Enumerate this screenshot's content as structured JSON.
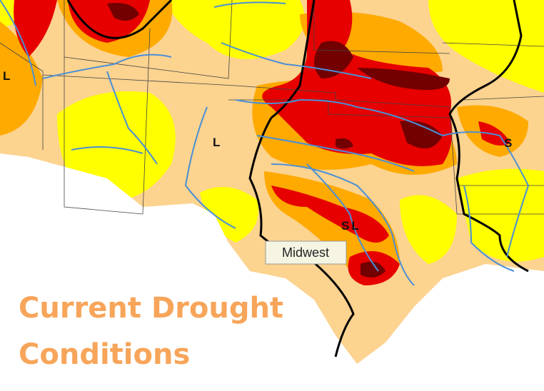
{
  "map": {
    "region_labels": [
      "L",
      "L",
      "S",
      "SL"
    ]
  },
  "tooltip": "Midwest",
  "title": [
    "Current Drought",
    "Conditions"
  ]
}
